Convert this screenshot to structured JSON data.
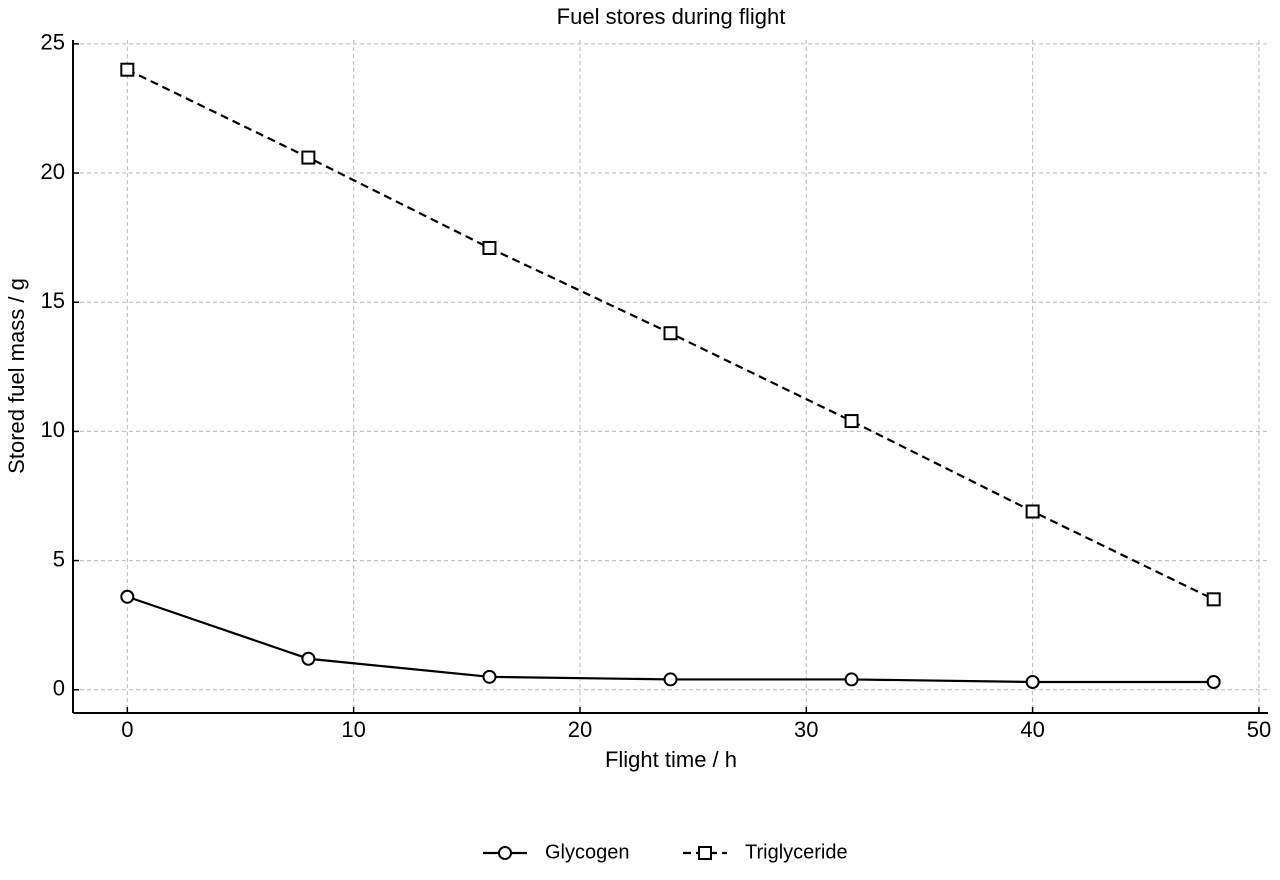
{
  "chart_data": {
    "type": "line",
    "title": "Fuel stores during flight",
    "x_label": "Flight time / h",
    "y_label": "Stored fuel mass / g",
    "x": [
      0,
      8,
      16,
      24,
      32,
      40,
      48
    ],
    "series": [
      {
        "name": "Glycogen",
        "color": "#000000",
        "linestyle": "solid",
        "marker": "circle",
        "values": [
          3.6,
          1.2,
          0.5,
          0.4,
          0.4,
          0.3,
          0.3
        ]
      },
      {
        "name": "Triglyceride",
        "color": "#000000",
        "linestyle": "dashed",
        "marker": "square",
        "values": [
          24.0,
          20.6,
          17.1,
          13.8,
          10.4,
          6.9,
          3.5
        ]
      }
    ],
    "xlim": [
      -2.4,
      50.4
    ],
    "ylim": [
      -0.9,
      25.15
    ],
    "xticks": [
      0,
      10,
      20,
      30,
      40,
      50
    ],
    "yticks": [
      0,
      5,
      10,
      15,
      20,
      25
    ],
    "grid": true,
    "legend": "bottom"
  }
}
